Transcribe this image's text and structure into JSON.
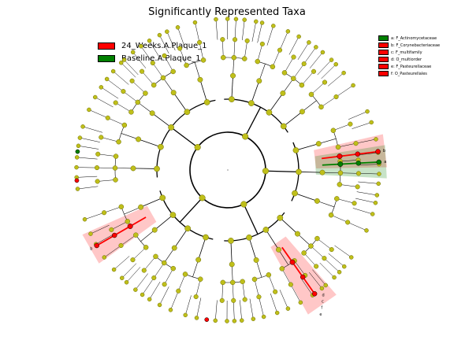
{
  "chart_data": {
    "type": "cladogram",
    "title": "Significantly Represented Taxa",
    "legend": {
      "placement": "top-left",
      "entries": [
        {
          "label": "24_Weeks.A.Plaque_1",
          "color": "#ff0000"
        },
        {
          "label": "Baseline.A.Plaque_1",
          "color": "#008000"
        }
      ]
    },
    "clade_key": [
      {
        "letter": "a",
        "label": "a: F_Actinomycetaceae",
        "color": "#008000"
      },
      {
        "letter": "b",
        "label": "b: F_Corynebacteriaceae",
        "color": "#ff0000"
      },
      {
        "letter": "c",
        "label": "c: F_multifamily",
        "color": "#ff0000"
      },
      {
        "letter": "d",
        "label": "d: O_multiorder",
        "color": "#ff0000"
      },
      {
        "letter": "e",
        "label": "e: F_Pasteurellaceae",
        "color": "#ff0000"
      },
      {
        "letter": "f",
        "label": "f: O_Pasteurellales",
        "color": "#ff0000"
      }
    ],
    "node_colors": {
      "default": "#bfbf1a",
      "enriched_24_weeks": "#ff0000",
      "enriched_baseline": "#008000"
    }
  }
}
